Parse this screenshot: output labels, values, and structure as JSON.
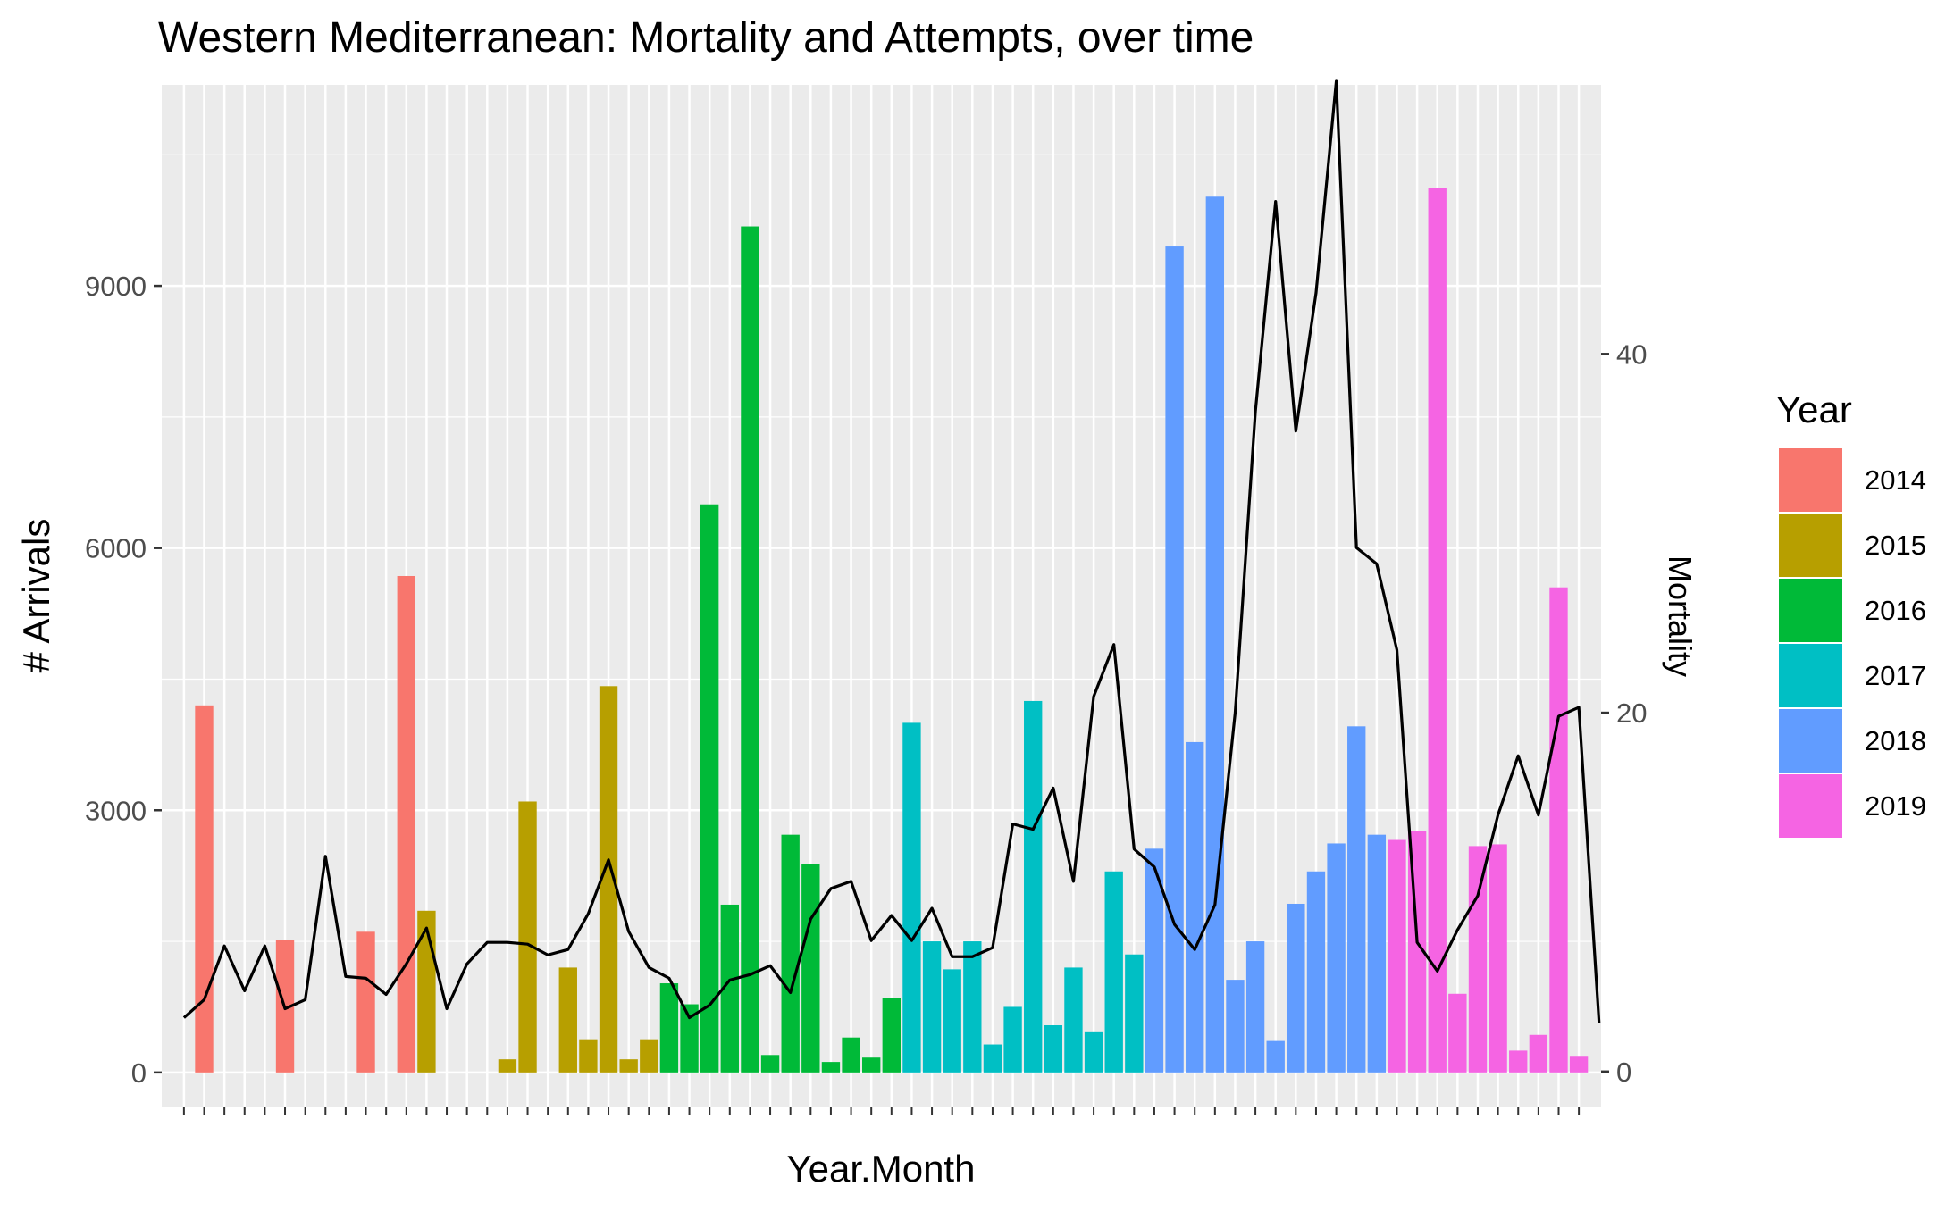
{
  "chart_data": {
    "type": "bar",
    "title": "Western Mediterranean: Mortality and Attempts, over time",
    "xlabel": "Year.Month",
    "ylabel": "# Arrivals",
    "y2label": "Mortality",
    "ylim": [
      -400,
      11300
    ],
    "y2lim": [
      -2,
      55
    ],
    "yticks": [
      0,
      3000,
      6000,
      9000
    ],
    "y2ticks": [
      0,
      20,
      40
    ],
    "x_tick_labels": "hidden",
    "grid": true,
    "background_color": "#EBEBEB",
    "line_color": "#000000",
    "legend": {
      "title": "Year",
      "position": "right",
      "entries": [
        {
          "label": "2014",
          "color": "#F8766D"
        },
        {
          "label": "2015",
          "color": "#B79F00"
        },
        {
          "label": "2016",
          "color": "#00BA38"
        },
        {
          "label": "2017",
          "color": "#00BFC4"
        },
        {
          "label": "2018",
          "color": "#619CFF"
        },
        {
          "label": "2019",
          "color": "#F564E3"
        }
      ]
    },
    "series": [
      {
        "kind": "bar",
        "axis": "left",
        "group_by": "Year",
        "years": [
          "2014",
          "2014",
          "2014",
          "2014",
          "2014",
          "2014",
          "2014",
          "2014",
          "2014",
          "2014",
          "2014",
          "2014",
          "2015",
          "2015",
          "2015",
          "2015",
          "2015",
          "2015",
          "2015",
          "2015",
          "2015",
          "2015",
          "2015",
          "2015",
          "2016",
          "2016",
          "2016",
          "2016",
          "2016",
          "2016",
          "2016",
          "2016",
          "2016",
          "2016",
          "2016",
          "2016",
          "2017",
          "2017",
          "2017",
          "2017",
          "2017",
          "2017",
          "2017",
          "2017",
          "2017",
          "2017",
          "2017",
          "2017",
          "2018",
          "2018",
          "2018",
          "2018",
          "2018",
          "2018",
          "2018",
          "2018",
          "2018",
          "2018",
          "2018",
          "2018",
          "2019",
          "2019",
          "2019",
          "2019",
          "2019",
          "2019",
          "2019",
          "2019",
          "2019",
          "2019"
        ],
        "values": [
          0,
          4200,
          0,
          0,
          0,
          1520,
          0,
          0,
          0,
          1610,
          0,
          5680,
          1850,
          0,
          0,
          0,
          150,
          3100,
          0,
          1200,
          380,
          4420,
          150,
          380,
          1020,
          780,
          6500,
          1920,
          9680,
          200,
          2720,
          2380,
          120,
          400,
          170,
          850,
          4000,
          1500,
          1180,
          1500,
          320,
          750,
          4250,
          540,
          1200,
          460,
          2300,
          1350,
          2560,
          9450,
          3780,
          10020,
          1060,
          1500,
          360,
          1930,
          2300,
          2620,
          3960,
          2720,
          2660,
          2760,
          10120,
          900,
          2590,
          2610,
          250,
          430,
          5550,
          180
        ]
      },
      {
        "kind": "line",
        "axis": "right",
        "name": "Mortality",
        "values": [
          3,
          4,
          7,
          4.5,
          7,
          3.5,
          4,
          12,
          5.3,
          5.2,
          4.3,
          6,
          8,
          3.5,
          6,
          7.2,
          7.2,
          7.1,
          6.5,
          6.8,
          8.8,
          11.8,
          7.8,
          5.8,
          5.2,
          3,
          3.7,
          5.1,
          5.4,
          5.9,
          4.4,
          8.5,
          10.2,
          10.6,
          7.3,
          8.7,
          7.3,
          9.1,
          6.4,
          6.4,
          6.9,
          13.8,
          13.5,
          15.8,
          10.6,
          20.9,
          23.8,
          12.4,
          11.4,
          8.2,
          6.8,
          9.3,
          20,
          36.8,
          48.5,
          35.7,
          43.4,
          55.2,
          29.2,
          28.3,
          23.5,
          7.2,
          5.6,
          7.9,
          9.8,
          14.3,
          17.6,
          14.3,
          19.8,
          20.3,
          2.7
        ]
      }
    ]
  }
}
